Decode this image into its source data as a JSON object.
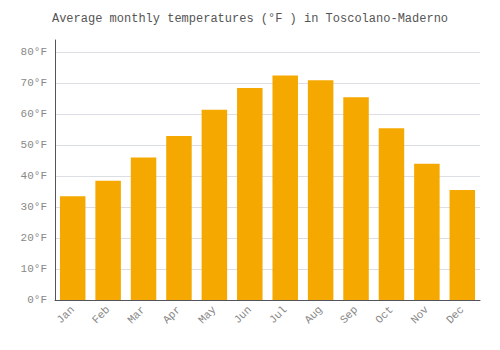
{
  "chart_data": {
    "type": "bar",
    "title": "Average monthly temperatures (°F ) in Toscolano-Maderno",
    "categories": [
      "Jan",
      "Feb",
      "Mar",
      "Apr",
      "May",
      "Jun",
      "Jul",
      "Aug",
      "Sep",
      "Oct",
      "Nov",
      "Dec"
    ],
    "values": [
      33.5,
      38.5,
      46.0,
      53.0,
      61.5,
      68.5,
      72.5,
      71.0,
      65.5,
      55.5,
      44.0,
      35.5
    ],
    "color": "#F5A800",
    "ylim": [
      0,
      84
    ],
    "yticks": [
      {
        "value": 0,
        "label": "0°F"
      },
      {
        "value": 10,
        "label": "10°F"
      },
      {
        "value": 20,
        "label": "20°F"
      },
      {
        "value": 30,
        "label": "30°F"
      },
      {
        "value": 40,
        "label": "40°F"
      },
      {
        "value": 50,
        "label": "50°F"
      },
      {
        "value": 60,
        "label": "60°F"
      },
      {
        "value": 70,
        "label": "70°F"
      },
      {
        "value": 80,
        "label": "80°F"
      }
    ],
    "grid": true
  }
}
